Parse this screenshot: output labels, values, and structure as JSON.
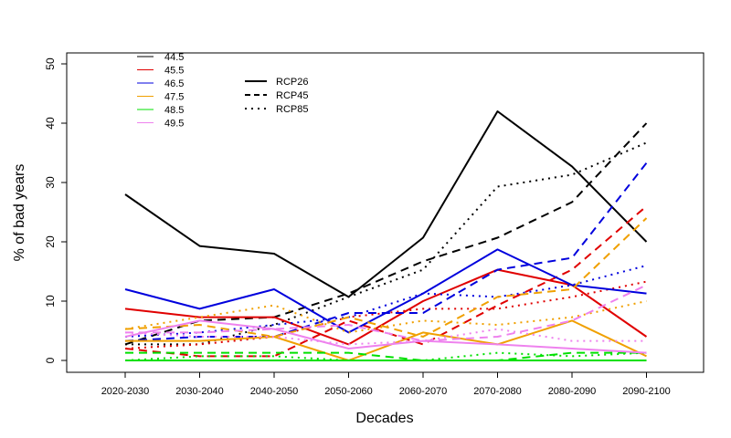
{
  "chart_data": {
    "type": "line",
    "title": "",
    "xlabel": "Decades",
    "ylabel": "% of bad years",
    "categories": [
      "2020-2030",
      "2030-2040",
      "2040-2050",
      "2050-2060",
      "2060-2070",
      "2070-2080",
      "2080-2090",
      "2090-2100"
    ],
    "yticks": [
      0,
      10,
      20,
      30,
      40,
      50
    ],
    "ylim": [
      0,
      50
    ],
    "grid": false,
    "legend_position": "top-left",
    "legend_colors": [
      {
        "label": "44.5",
        "color": "#000000"
      },
      {
        "label": "45.5",
        "color": "#e00000"
      },
      {
        "label": "46.5",
        "color": "#0000dd"
      },
      {
        "label": "47.5",
        "color": "#f0a000"
      },
      {
        "label": "48.5",
        "color": "#00e000"
      },
      {
        "label": "49.5",
        "color": "#ee82ee"
      }
    ],
    "legend_styles": [
      {
        "label": "RCP26",
        "dash": "solid"
      },
      {
        "label": "RCP45",
        "dash": "dashed"
      },
      {
        "label": "RCP85",
        "dash": "dotted"
      }
    ],
    "series": [
      {
        "threshold": "44.5",
        "scenario": "RCP26",
        "color": "#000000",
        "dash": "solid",
        "values": [
          28,
          19.3,
          18,
          10.7,
          20.7,
          42,
          32.7,
          20
        ]
      },
      {
        "threshold": "44.5",
        "scenario": "RCP45",
        "color": "#000000",
        "dash": "dashed",
        "values": [
          2.7,
          6.7,
          7.3,
          11.3,
          16.7,
          20.7,
          26.7,
          40
        ]
      },
      {
        "threshold": "44.5",
        "scenario": "RCP85",
        "color": "#000000",
        "dash": "dotted",
        "values": [
          2.7,
          2.7,
          6,
          10.7,
          15.3,
          29.3,
          31.3,
          36.7
        ]
      },
      {
        "threshold": "45.5",
        "scenario": "RCP26",
        "color": "#e00000",
        "dash": "solid",
        "values": [
          8.7,
          7.3,
          7.3,
          2.7,
          10,
          15.3,
          12.7,
          4
        ]
      },
      {
        "threshold": "45.5",
        "scenario": "RCP45",
        "color": "#e00000",
        "dash": "dashed",
        "values": [
          2,
          0.7,
          0.7,
          6.7,
          2.7,
          9.3,
          15.3,
          26
        ]
      },
      {
        "threshold": "45.5",
        "scenario": "RCP85",
        "color": "#e00000",
        "dash": "dotted",
        "values": [
          2,
          2.7,
          4,
          7.3,
          8.7,
          8.7,
          10.7,
          13.3
        ]
      },
      {
        "threshold": "46.5",
        "scenario": "RCP26",
        "color": "#0000dd",
        "dash": "solid",
        "values": [
          12,
          8.7,
          12,
          4.7,
          11.3,
          18.7,
          12.7,
          11.3
        ]
      },
      {
        "threshold": "46.5",
        "scenario": "RCP45",
        "color": "#0000dd",
        "dash": "dashed",
        "values": [
          3.3,
          4,
          4,
          8,
          8,
          15.3,
          17.3,
          33.3
        ]
      },
      {
        "threshold": "46.5",
        "scenario": "RCP85",
        "color": "#0000dd",
        "dash": "dotted",
        "values": [
          4,
          4.7,
          6,
          7.3,
          11.3,
          10.7,
          12.7,
          16
        ]
      },
      {
        "threshold": "47.5",
        "scenario": "RCP26",
        "color": "#f0a000",
        "dash": "solid",
        "values": [
          3.3,
          3.3,
          4,
          0,
          4.7,
          2.7,
          6.7,
          0.7
        ]
      },
      {
        "threshold": "47.5",
        "scenario": "RCP45",
        "color": "#f0a000",
        "dash": "dashed",
        "values": [
          5.3,
          6,
          4,
          7.3,
          4,
          10.7,
          12,
          24
        ]
      },
      {
        "threshold": "47.5",
        "scenario": "RCP85",
        "color": "#f0a000",
        "dash": "dotted",
        "values": [
          5.3,
          7.3,
          9.3,
          4.7,
          6.7,
          6,
          7.3,
          10
        ]
      },
      {
        "threshold": "48.5",
        "scenario": "RCP26",
        "color": "#00e000",
        "dash": "solid",
        "values": [
          0,
          0,
          0,
          0,
          0,
          0,
          0,
          0
        ]
      },
      {
        "threshold": "48.5",
        "scenario": "RCP45",
        "color": "#00e000",
        "dash": "dashed",
        "values": [
          1.3,
          1.3,
          1.3,
          1.3,
          0,
          0,
          1.3,
          1.3
        ]
      },
      {
        "threshold": "48.5",
        "scenario": "RCP85",
        "color": "#00e000",
        "dash": "dotted",
        "values": [
          0,
          0.7,
          0.7,
          0,
          0,
          1.3,
          0.7,
          1.3
        ]
      },
      {
        "threshold": "49.5",
        "scenario": "RCP26",
        "color": "#ee82ee",
        "dash": "solid",
        "values": [
          4,
          6.7,
          5.3,
          2,
          3.3,
          2.7,
          2,
          1.3
        ]
      },
      {
        "threshold": "49.5",
        "scenario": "RCP45",
        "color": "#ee82ee",
        "dash": "dashed",
        "values": [
          4.7,
          4.7,
          5.3,
          6,
          3.3,
          4,
          6.7,
          12.7
        ]
      },
      {
        "threshold": "49.5",
        "scenario": "RCP85",
        "color": "#ee82ee",
        "dash": "dotted",
        "values": [
          4.7,
          4,
          4,
          2.7,
          3.3,
          5.3,
          3.3,
          3.3
        ]
      }
    ]
  }
}
